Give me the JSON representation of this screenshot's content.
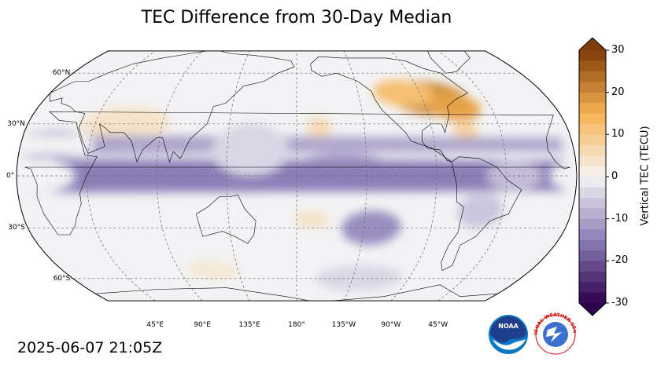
{
  "title": "TEC Difference from 30-Day Median",
  "timestamp": "2025-06-07 21:05Z",
  "map": {
    "projection": "robinson",
    "central_longitude": 180,
    "lat_labels": [
      {
        "lat": 60,
        "text": "60°N"
      },
      {
        "lat": 30,
        "text": "30°N"
      },
      {
        "lat": 0,
        "text": "0°"
      },
      {
        "lat": -30,
        "text": "30°S"
      },
      {
        "lat": -60,
        "text": "60°S"
      }
    ],
    "lon_labels": [
      {
        "lon": 45,
        "text": "45°E"
      },
      {
        "lon": 90,
        "text": "90°E"
      },
      {
        "lon": 135,
        "text": "135°E"
      },
      {
        "lon": 180,
        "text": "180°"
      },
      {
        "lon": 225,
        "text": "135°W"
      },
      {
        "lon": 270,
        "text": "90°W"
      },
      {
        "lon": 315,
        "text": "45°W"
      }
    ],
    "anomalies_tecu": [
      {
        "lon": 275,
        "lat": 45,
        "rlon": 28,
        "rlat": 10,
        "value": 20
      },
      {
        "lon": 290,
        "lat": 40,
        "rlon": 18,
        "rlat": 8,
        "value": 17
      },
      {
        "lon": 258,
        "lat": 48,
        "rlon": 22,
        "rlat": 8,
        "value": 12
      },
      {
        "lon": 292,
        "lat": 25,
        "rlon": 8,
        "rlat": 8,
        "value": 8
      },
      {
        "lon": 195,
        "lat": 28,
        "rlon": 8,
        "rlat": 6,
        "value": 6
      },
      {
        "lon": 65,
        "lat": 30,
        "rlon": 30,
        "rlat": 10,
        "value": 4
      },
      {
        "lon": 190,
        "lat": -25,
        "rlon": 12,
        "rlat": 5,
        "value": 4
      },
      {
        "lon": 115,
        "lat": -55,
        "rlon": 20,
        "rlat": 6,
        "value": 3
      },
      {
        "lon": 210,
        "lat": 5,
        "rlon": 30,
        "rlat": 8,
        "value": -10
      },
      {
        "lon": 230,
        "lat": -30,
        "rlon": 20,
        "rlat": 10,
        "value": -13
      },
      {
        "lon": 10,
        "lat": 0,
        "rlon": 28,
        "rlat": 10,
        "value": -15
      },
      {
        "lon": 20,
        "lat": 18,
        "rlon": 28,
        "rlat": 8,
        "value": -10
      },
      {
        "lon": 320,
        "lat": 0,
        "rlon": 18,
        "rlat": 8,
        "value": -7
      },
      {
        "lon": 300,
        "lat": -20,
        "rlon": 15,
        "rlat": 10,
        "value": -6
      },
      {
        "lon": 150,
        "lat": 15,
        "rlon": 25,
        "rlat": 15,
        "value": -4
      },
      {
        "lon": 230,
        "lat": -60,
        "rlon": 35,
        "rlat": 8,
        "value": -4
      }
    ]
  },
  "colorbar": {
    "label": "Vertical TEC (TECU)",
    "min": -30,
    "max": 30,
    "ticks": [
      30,
      20,
      10,
      0,
      -10,
      -20,
      -30
    ],
    "tick_texts": [
      "30",
      "20",
      "10",
      "0",
      "-10",
      "-20",
      "-30"
    ],
    "colors": {
      "negative_end": "#2d004b",
      "neutral": "#f5f5f5",
      "positive_end": "#7f3b08"
    }
  },
  "logos": [
    {
      "name": "noaa-logo",
      "text": "NOAA"
    },
    {
      "name": "nws-logo",
      "text": "NATIONAL WEATHER SERVICE"
    }
  ]
}
